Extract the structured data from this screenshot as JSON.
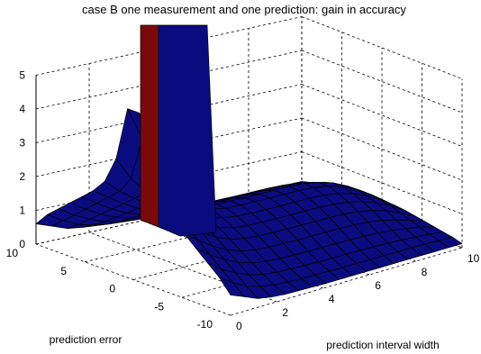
{
  "chart_data": {
    "type": "surface",
    "title": "case B one measurement and one prediction: gain in accuracy",
    "xlabel": "prediction interval width",
    "ylabel": "prediction error",
    "zlabel": "",
    "x_ticks": [
      "0",
      "2",
      "4",
      "6",
      "8",
      "10"
    ],
    "y_ticks": [
      "-10",
      "-5",
      "0",
      "5",
      "10"
    ],
    "z_ticks": [
      "0",
      "1",
      "2",
      "3",
      "4",
      "5"
    ],
    "xlim": [
      0,
      10
    ],
    "ylim": [
      -10,
      10
    ],
    "zlim": [
      0,
      5
    ],
    "grid": true,
    "surface_color": "#0b0b80",
    "peak_color": "#7a0a0a",
    "x": [
      0.0,
      0.59,
      1.18,
      1.76,
      2.35,
      2.94,
      3.53,
      4.12,
      4.71,
      5.29,
      5.88,
      6.47,
      7.06,
      7.65,
      8.24,
      8.82,
      9.41,
      10.0
    ],
    "y": [
      -10.0,
      -8.82,
      -7.65,
      -6.47,
      -5.29,
      -4.12,
      -2.94,
      -1.76,
      -0.59,
      0.59,
      1.76,
      2.94,
      4.12,
      5.29,
      6.47,
      7.65,
      8.82,
      10.0
    ],
    "z_description_note": "",
    "z": [
      [
        0.6,
        0.43,
        0.26,
        0.19,
        0.15,
        0.14,
        0.13,
        0.12,
        0.12,
        0.12,
        0.12,
        0.12,
        0.12,
        0.12,
        0.12,
        0.12,
        0.12,
        0.12
      ],
      [
        1.0,
        0.72,
        0.5,
        0.38,
        0.31,
        0.28,
        0.26,
        0.25,
        0.25,
        0.24,
        0.24,
        0.24,
        0.24,
        0.24,
        0.24,
        0.23,
        0.22,
        0.2
      ],
      [
        1.3,
        1.0,
        0.78,
        0.6,
        0.5,
        0.45,
        0.43,
        0.42,
        0.41,
        0.4,
        0.4,
        0.4,
        0.39,
        0.38,
        0.36,
        0.33,
        0.3,
        0.25
      ],
      [
        1.6,
        1.3,
        1.05,
        0.85,
        0.72,
        0.65,
        0.62,
        0.61,
        0.6,
        0.6,
        0.6,
        0.6,
        0.59,
        0.57,
        0.53,
        0.47,
        0.4,
        0.3
      ],
      [
        1.9,
        1.6,
        1.32,
        1.1,
        0.95,
        0.87,
        0.84,
        0.83,
        0.82,
        0.82,
        0.82,
        0.82,
        0.81,
        0.78,
        0.72,
        0.62,
        0.5,
        0.35
      ],
      [
        2.2,
        1.9,
        1.6,
        1.36,
        1.18,
        1.09,
        1.05,
        1.04,
        1.03,
        1.03,
        1.03,
        1.03,
        1.02,
        0.98,
        0.9,
        0.78,
        0.6,
        0.4
      ],
      [
        2.6,
        2.2,
        1.88,
        1.6,
        1.4,
        1.29,
        1.24,
        1.23,
        1.22,
        1.22,
        1.22,
        1.22,
        1.2,
        1.15,
        1.05,
        0.9,
        0.7,
        0.45
      ],
      [
        3.4,
        2.7,
        2.2,
        1.85,
        1.6,
        1.46,
        1.4,
        1.38,
        1.37,
        1.37,
        1.37,
        1.37,
        1.35,
        1.29,
        1.18,
        1.0,
        0.76,
        0.48
      ],
      [
        5.0,
        4.0,
        2.9,
        2.2,
        1.8,
        1.6,
        1.52,
        1.5,
        1.49,
        1.49,
        1.49,
        1.49,
        1.47,
        1.4,
        1.27,
        1.07,
        0.81,
        0.5
      ],
      [
        5.0,
        4.0,
        2.9,
        2.2,
        1.8,
        1.6,
        1.52,
        1.5,
        1.49,
        1.49,
        1.49,
        1.49,
        1.47,
        1.4,
        1.27,
        1.07,
        0.81,
        0.5
      ],
      [
        3.4,
        2.7,
        2.2,
        1.85,
        1.6,
        1.46,
        1.4,
        1.38,
        1.37,
        1.37,
        1.37,
        1.37,
        1.35,
        1.29,
        1.18,
        1.0,
        0.76,
        0.48
      ],
      [
        2.6,
        2.2,
        1.88,
        1.6,
        1.4,
        1.29,
        1.24,
        1.23,
        1.22,
        1.22,
        1.22,
        1.22,
        1.2,
        1.15,
        1.05,
        0.9,
        0.7,
        0.45
      ],
      [
        2.2,
        1.9,
        1.6,
        1.36,
        1.18,
        1.09,
        1.05,
        1.04,
        1.03,
        1.03,
        1.03,
        1.03,
        1.02,
        0.98,
        0.9,
        0.78,
        0.6,
        0.4
      ],
      [
        1.9,
        1.6,
        1.32,
        1.1,
        0.95,
        0.87,
        0.84,
        0.83,
        0.82,
        0.82,
        0.82,
        0.82,
        0.81,
        0.78,
        0.72,
        0.62,
        0.5,
        0.35
      ],
      [
        1.6,
        1.3,
        1.05,
        0.85,
        0.72,
        0.65,
        0.62,
        0.61,
        0.6,
        0.6,
        0.6,
        0.6,
        0.59,
        0.57,
        0.53,
        0.47,
        0.4,
        0.3
      ],
      [
        1.3,
        1.0,
        0.78,
        0.6,
        0.5,
        0.45,
        0.43,
        0.42,
        0.41,
        0.4,
        0.4,
        0.4,
        0.39,
        0.38,
        0.36,
        0.33,
        0.3,
        0.25
      ],
      [
        1.0,
        0.72,
        0.5,
        0.38,
        0.31,
        0.28,
        0.26,
        0.25,
        0.25,
        0.24,
        0.24,
        0.24,
        0.24,
        0.24,
        0.24,
        0.23,
        0.22,
        0.2
      ],
      [
        0.6,
        0.43,
        0.26,
        0.19,
        0.15,
        0.14,
        0.13,
        0.12,
        0.12,
        0.12,
        0.12,
        0.12,
        0.12,
        0.12,
        0.12,
        0.12,
        0.12,
        0.12
      ]
    ],
    "spike": {
      "x": [
        0.0,
        1.18
      ],
      "y": [
        -0.59,
        0.59
      ],
      "z": 60
    }
  }
}
